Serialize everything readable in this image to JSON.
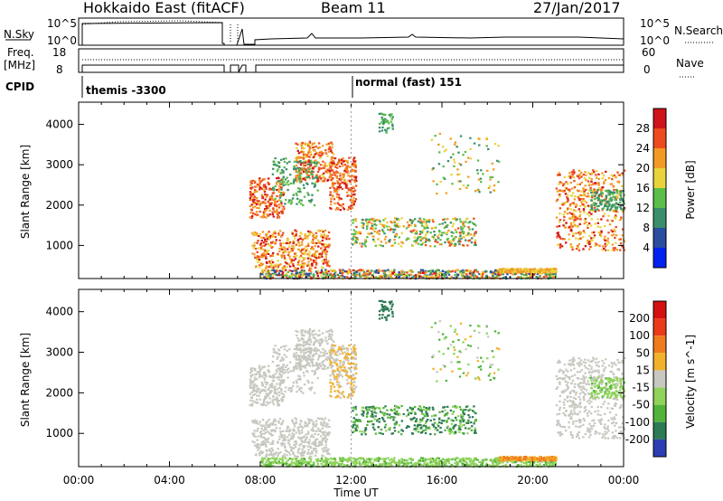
{
  "header": {
    "station": "Hokkaido East (fitACF)",
    "beam": "Beam 11",
    "date": "27/Jan/2017"
  },
  "strips": {
    "nsky_label": "N.Sky",
    "nsky_ticks": [
      "10^5",
      "10^0"
    ],
    "nsearch_label": "N.Search",
    "nsearch_ticks": [
      "10^5",
      "10^0"
    ],
    "freq_label": "Freq.",
    "freq_unit": "[MHz]",
    "freq_ticks": [
      "18",
      "8"
    ],
    "nave_label": "Nave",
    "nave_ticks": [
      "60",
      "0"
    ],
    "cpid_label": "CPID",
    "cpid_segments": [
      "themis -3300",
      "normal (fast) 151"
    ]
  },
  "chart_data": [
    {
      "type": "heatmap",
      "title": "",
      "xlabel": "",
      "ylabel": "Slant Range [km]",
      "xlim": [
        0,
        24
      ],
      "ylim": [
        180,
        4550
      ],
      "x_tick_labels": [
        "00:00",
        "04:00",
        "08:00",
        "12:00",
        "16:00",
        "20:00",
        "00:00"
      ],
      "y_ticks": [
        1000,
        2000,
        3000,
        4000
      ],
      "colorbar_label": "Power [dB]",
      "colorbar_ticks": [
        4,
        8,
        12,
        16,
        20,
        24,
        28
      ],
      "colorbar_colors": [
        "#0022ee",
        "#2a4da0",
        "#3a8f6a",
        "#5bbd4a",
        "#e8d43a",
        "#f39a25",
        "#ee4a1f",
        "#d0121a"
      ]
    },
    {
      "type": "heatmap",
      "title": "",
      "xlabel": "Time UT",
      "ylabel": "Slant Range [km]",
      "xlim": [
        0,
        24
      ],
      "ylim": [
        180,
        4550
      ],
      "x_tick_labels": [
        "00:00",
        "04:00",
        "08:00",
        "12:00",
        "16:00",
        "20:00",
        "00:00"
      ],
      "y_ticks": [
        1000,
        2000,
        3000,
        4000
      ],
      "colorbar_label": "Velocity [m s^-1]",
      "colorbar_ticks": [
        200,
        100,
        50,
        15,
        -15,
        -50,
        -100,
        -200
      ],
      "colorbar_colors": [
        "#2b3fb3",
        "#2d7a55",
        "#52b33c",
        "#8fd35a",
        "#c8c8c0",
        "#f2b12a",
        "#f07a1e",
        "#ea3a1a",
        "#d41010"
      ]
    }
  ]
}
